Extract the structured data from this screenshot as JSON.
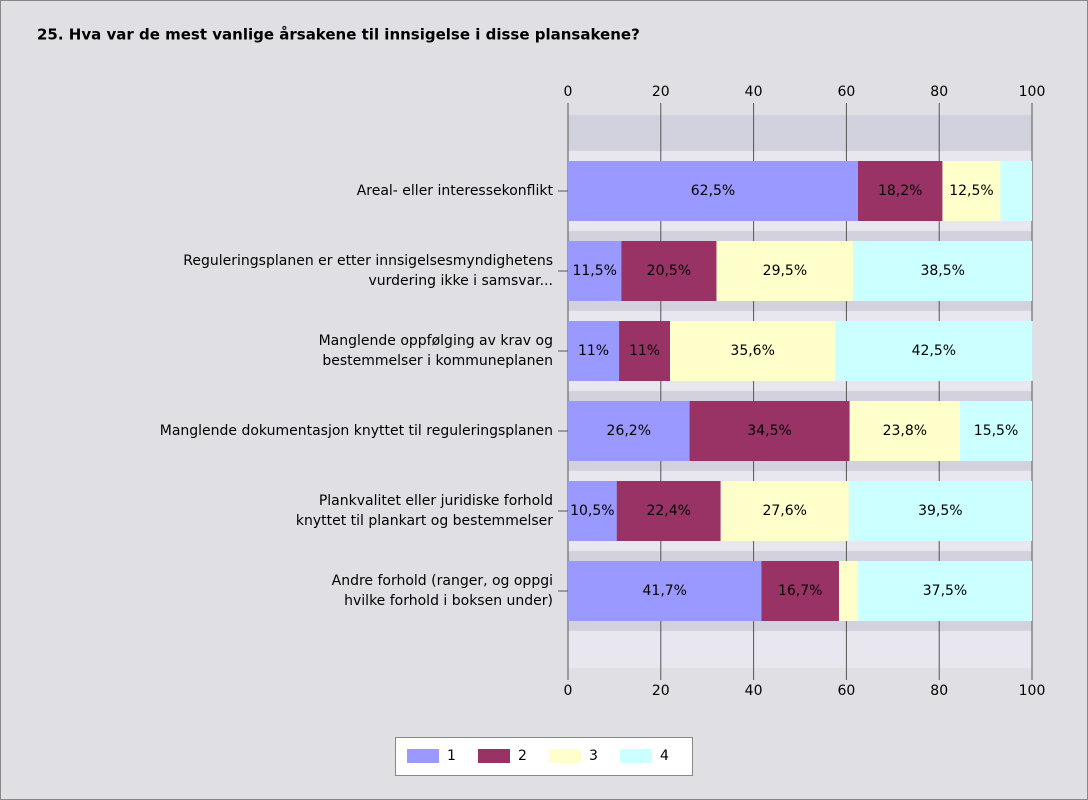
{
  "chart_data": {
    "type": "stacked-bar-horizontal",
    "title": "25. Hva var de mest vanlige årsakene til innsigelse i disse plansakene?",
    "categories": [
      [
        "Areal- eller interessekonflikt"
      ],
      [
        "Reguleringsplanen er etter innsigelsesmyndighetens",
        "vurdering ikke i samsvar..."
      ],
      [
        "Manglende oppfølging av krav og",
        "bestemmelser i kommuneplanen"
      ],
      [
        "Manglende dokumentasjon knyttet til reguleringsplanen"
      ],
      [
        "Plankvalitet eller juridiske forhold",
        "knyttet til plankart og bestemmelser"
      ],
      [
        "Andre forhold (ranger, og oppgi",
        "hvilke forhold i boksen under)"
      ]
    ],
    "series": [
      {
        "name": "1",
        "color": "#9999ff",
        "values": [
          62.5,
          11.5,
          11,
          26.2,
          10.5,
          41.7
        ],
        "value_labels": [
          "62,5%",
          "11,5%",
          "11%",
          "26,2%",
          "10,5%",
          "41,7%"
        ]
      },
      {
        "name": "2",
        "color": "#993366",
        "values": [
          18.2,
          20.5,
          11,
          34.5,
          22.4,
          16.7
        ],
        "value_labels": [
          "18,2%",
          "20,5%",
          "11%",
          "34,5%",
          "22,4%",
          "16,7%"
        ]
      },
      {
        "name": "3",
        "color": "#ffffcc",
        "values": [
          12.5,
          29.5,
          35.6,
          23.8,
          27.6,
          4.1
        ],
        "value_labels": [
          "12,5%",
          "29,5%",
          "35,6%",
          "23,8%",
          "27,6%",
          null
        ]
      },
      {
        "name": "4",
        "color": "#ccffff",
        "values": [
          6.8,
          38.5,
          42.5,
          15.5,
          39.5,
          37.5
        ],
        "value_labels": [
          null,
          "38,5%",
          "42,5%",
          "15,5%",
          "39,5%",
          "37,5%"
        ]
      }
    ],
    "xlim": [
      0,
      100
    ],
    "xticks": [
      0,
      20,
      40,
      60,
      80,
      100
    ],
    "grid": true,
    "legend": "bottom"
  }
}
